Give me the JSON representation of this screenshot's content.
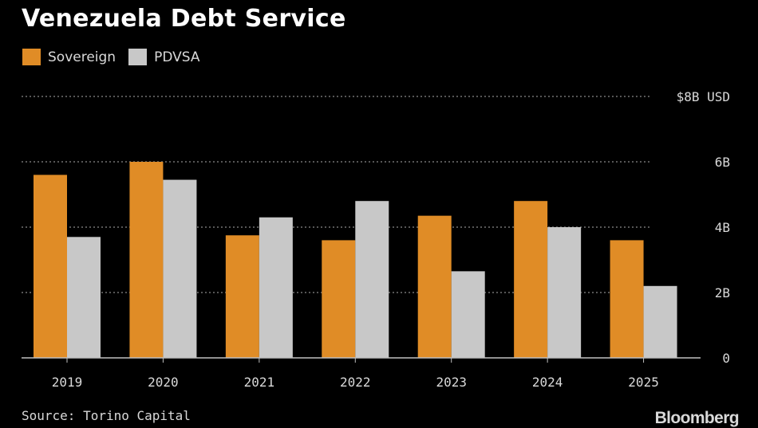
{
  "chart_data": {
    "type": "bar",
    "title": "Venezuela Debt Service",
    "categories": [
      "2019",
      "2020",
      "2021",
      "2022",
      "2023",
      "2024",
      "2025"
    ],
    "series": [
      {
        "name": "Sovereign",
        "color": "#e08c26",
        "values": [
          5.6,
          6.0,
          3.75,
          3.6,
          4.35,
          4.8,
          3.6
        ]
      },
      {
        "name": "PDVSA",
        "color": "#c8c8c8",
        "values": [
          3.7,
          5.45,
          4.3,
          4.8,
          2.65,
          4.0,
          2.2
        ]
      }
    ],
    "y_ticks": [
      {
        "value": 8,
        "label": "$8B USD"
      },
      {
        "value": 6,
        "label": "6B"
      },
      {
        "value": 4,
        "label": "4B"
      },
      {
        "value": 2,
        "label": "2B"
      },
      {
        "value": 0,
        "label": "0"
      }
    ],
    "ylim": [
      0,
      8
    ],
    "xlabel": "",
    "ylabel": "",
    "grid": true,
    "legend_position": "top-left"
  },
  "footer": {
    "source": "Source: Torino Capital",
    "brand": "Bloomberg"
  }
}
